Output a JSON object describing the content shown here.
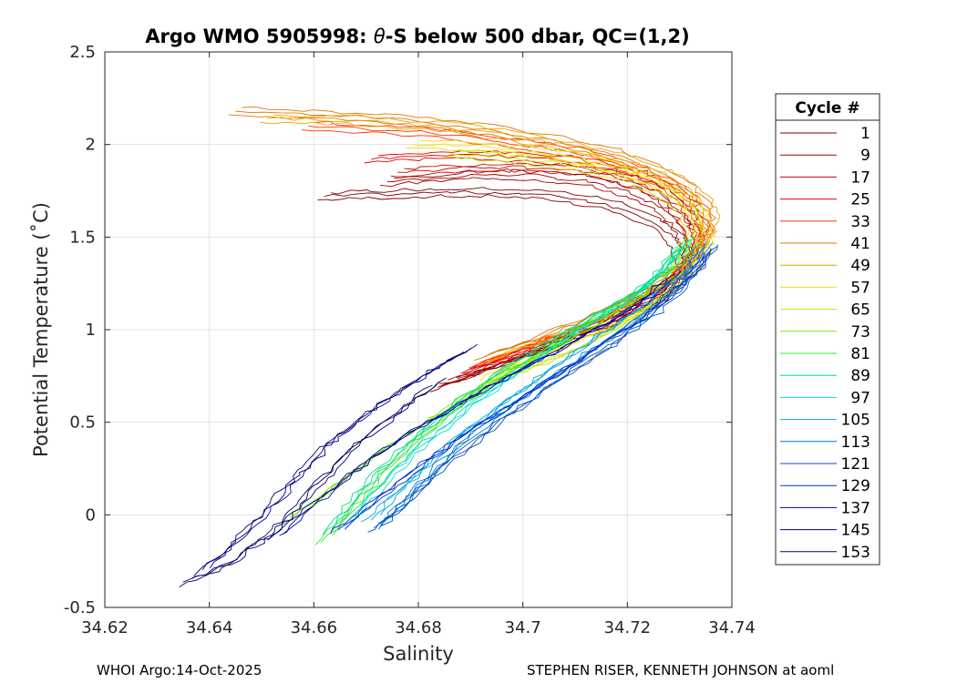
{
  "chart_data": {
    "type": "line",
    "title": "Argo WMO 5905998: θ-S below 500 dbar,  QC=(1,2)",
    "title_prefix": "Argo WMO 5905998: ",
    "title_theta": "θ",
    "title_suffix": "-S below 500 dbar,  QC=(1,2)",
    "xlabel": "Salinity",
    "ylabel": "Potential Temperature (˚C)",
    "xlim": [
      34.62,
      34.74
    ],
    "ylim": [
      -0.5,
      2.5
    ],
    "xticks": [
      34.62,
      34.64,
      34.66,
      34.68,
      34.7,
      34.72,
      34.74
    ],
    "yticks": [
      -0.5,
      0,
      0.5,
      1,
      1.5,
      2,
      2.5
    ],
    "xtick_labels": [
      "34.62",
      "34.64",
      "34.66",
      "34.68",
      "34.7",
      "34.72",
      "34.74"
    ],
    "ytick_labels": [
      "-0.5",
      "0",
      "0.5",
      "1",
      "1.5",
      "2",
      "2.5"
    ],
    "grid": true,
    "legend_title": "Cycle #",
    "legend_position": "right-outside",
    "series": [
      {
        "name": "1",
        "color": "#7f0000",
        "s": [
          34.662,
          34.672,
          34.685,
          34.697,
          34.707,
          34.716,
          34.724,
          34.729,
          34.731,
          34.73,
          34.726,
          34.718,
          34.707,
          34.695,
          34.683
        ],
        "t": [
          1.72,
          1.73,
          1.74,
          1.74,
          1.72,
          1.68,
          1.6,
          1.5,
          1.38,
          1.26,
          1.15,
          1.04,
          0.92,
          0.8,
          0.68
        ]
      },
      {
        "name": "9",
        "color": "#a00000",
        "s": [
          34.674,
          34.684,
          34.694,
          34.704,
          34.713,
          34.72,
          34.726,
          34.73,
          34.732,
          34.731,
          34.727,
          34.72,
          34.71,
          34.698,
          34.686
        ],
        "t": [
          1.8,
          1.82,
          1.84,
          1.83,
          1.8,
          1.75,
          1.67,
          1.57,
          1.45,
          1.32,
          1.2,
          1.08,
          0.96,
          0.84,
          0.72
        ]
      },
      {
        "name": "17",
        "color": "#cc0000",
        "s": [
          34.676,
          34.687,
          34.698,
          34.708,
          34.716,
          34.722,
          34.727,
          34.731,
          34.733,
          34.732,
          34.728,
          34.721,
          34.712,
          34.701,
          34.689
        ],
        "t": [
          1.85,
          1.87,
          1.88,
          1.87,
          1.84,
          1.79,
          1.72,
          1.62,
          1.5,
          1.37,
          1.24,
          1.12,
          1.0,
          0.88,
          0.76
        ]
      },
      {
        "name": "25",
        "color": "#e60000",
        "s": [
          34.671,
          34.683,
          34.695,
          34.706,
          34.715,
          34.722,
          34.728,
          34.732,
          34.734,
          34.733,
          34.729,
          34.722,
          34.713,
          34.702,
          34.69
        ],
        "t": [
          1.92,
          1.94,
          1.94,
          1.92,
          1.88,
          1.83,
          1.76,
          1.66,
          1.54,
          1.41,
          1.28,
          1.15,
          1.03,
          0.91,
          0.79
        ]
      },
      {
        "name": "33",
        "color": "#ff3300",
        "s": [
          34.659,
          34.673,
          34.687,
          34.7,
          34.711,
          34.72,
          34.727,
          34.732,
          34.735,
          34.734,
          34.73,
          34.723,
          34.714,
          34.703,
          34.691
        ],
        "t": [
          2.1,
          2.08,
          2.05,
          2.0,
          1.95,
          1.88,
          1.8,
          1.7,
          1.58,
          1.45,
          1.31,
          1.18,
          1.05,
          0.93,
          0.81
        ]
      },
      {
        "name": "41",
        "color": "#e07800",
        "s": [
          34.645,
          34.662,
          34.678,
          34.693,
          34.706,
          34.717,
          34.725,
          34.731,
          34.735,
          34.735,
          34.731,
          34.724,
          34.715,
          34.704,
          34.692
        ],
        "t": [
          2.18,
          2.16,
          2.13,
          2.08,
          2.02,
          1.95,
          1.87,
          1.77,
          1.65,
          1.51,
          1.37,
          1.23,
          1.1,
          0.97,
          0.85
        ]
      },
      {
        "name": "49",
        "color": "#f0a000",
        "s": [
          34.651,
          34.667,
          34.683,
          34.697,
          34.709,
          34.719,
          34.727,
          34.733,
          34.736,
          34.735,
          34.732,
          34.725,
          34.716,
          34.705,
          34.693
        ],
        "t": [
          2.14,
          2.13,
          2.1,
          2.05,
          1.99,
          1.92,
          1.84,
          1.74,
          1.62,
          1.48,
          1.34,
          1.2,
          1.07,
          0.95,
          0.83
        ]
      },
      {
        "name": "57",
        "color": "#f0e000",
        "s": [
          34.679,
          34.691,
          34.702,
          34.712,
          34.72,
          34.726,
          34.731,
          34.734,
          34.735,
          34.734,
          34.73,
          34.723,
          34.714,
          34.704,
          34.693
        ],
        "t": [
          2.0,
          1.99,
          1.96,
          1.92,
          1.86,
          1.79,
          1.71,
          1.61,
          1.49,
          1.36,
          1.23,
          1.1,
          0.98,
          0.86,
          0.75
        ]
      },
      {
        "name": "65",
        "color": "#c8e600",
        "s": [
          34.686,
          34.697,
          34.707,
          34.715,
          34.722,
          34.727,
          34.731,
          34.733,
          34.733,
          34.731,
          34.727,
          34.72,
          34.712,
          34.702,
          34.691
        ],
        "t": [
          1.95,
          1.93,
          1.9,
          1.86,
          1.81,
          1.74,
          1.66,
          1.56,
          1.44,
          1.3,
          1.17,
          1.04,
          0.92,
          0.8,
          0.69
        ]
      },
      {
        "name": "73",
        "color": "#7de600",
        "s": [
          34.731,
          34.73,
          34.727,
          34.72,
          34.71,
          34.699,
          34.688,
          34.677,
          34.666,
          34.656
        ],
        "t": [
          1.5,
          1.38,
          1.26,
          1.12,
          0.96,
          0.8,
          0.62,
          0.42,
          0.2,
          -0.02
        ]
      },
      {
        "name": "81",
        "color": "#33e633",
        "s": [
          34.731,
          34.727,
          34.719,
          34.708,
          34.697,
          34.686,
          34.677,
          34.669,
          34.662
        ],
        "t": [
          1.45,
          1.3,
          1.14,
          0.96,
          0.76,
          0.55,
          0.32,
          0.08,
          -0.14
        ]
      },
      {
        "name": "89",
        "color": "#00e07a",
        "s": [
          34.731,
          34.726,
          34.718,
          34.707,
          34.696,
          34.686,
          34.677,
          34.669,
          34.663
        ],
        "t": [
          1.46,
          1.3,
          1.14,
          0.97,
          0.78,
          0.58,
          0.36,
          0.13,
          -0.08
        ]
      },
      {
        "name": "97",
        "color": "#00e0c8",
        "s": [
          34.731,
          34.727,
          34.72,
          34.71,
          34.7,
          34.69,
          34.681,
          34.673,
          34.667
        ],
        "t": [
          1.47,
          1.32,
          1.15,
          0.98,
          0.79,
          0.59,
          0.38,
          0.16,
          -0.04
        ]
      },
      {
        "name": "105",
        "color": "#00a8e6",
        "s": [
          34.734,
          34.73,
          34.723,
          34.714,
          34.704,
          34.694,
          34.685,
          34.677,
          34.671
        ],
        "t": [
          1.46,
          1.3,
          1.13,
          0.95,
          0.76,
          0.56,
          0.36,
          0.15,
          -0.02
        ]
      },
      {
        "name": "113",
        "color": "#0078d0",
        "s": [
          34.735,
          34.731,
          34.724,
          34.715,
          34.705,
          34.695,
          34.686,
          34.679,
          34.673
        ],
        "t": [
          1.45,
          1.28,
          1.1,
          0.92,
          0.73,
          0.53,
          0.33,
          0.12,
          -0.05
        ]
      },
      {
        "name": "121",
        "color": "#0050c0",
        "s": [
          34.736,
          34.732,
          34.725,
          34.716,
          34.706,
          34.696,
          34.687,
          34.679,
          34.672
        ],
        "t": [
          1.44,
          1.27,
          1.08,
          0.9,
          0.71,
          0.51,
          0.31,
          0.1,
          -0.08
        ]
      },
      {
        "name": "129",
        "color": "#0030d0",
        "s": [
          34.736,
          34.731,
          34.723,
          34.713,
          34.703,
          34.692,
          34.682,
          34.673,
          34.664
        ],
        "t": [
          1.43,
          1.25,
          1.06,
          0.88,
          0.69,
          0.49,
          0.3,
          0.1,
          -0.09
        ]
      },
      {
        "name": "137",
        "color": "#0000a8",
        "s": [
          34.729,
          34.722,
          34.713,
          34.702,
          34.691,
          34.68,
          34.67,
          34.661,
          34.653
        ],
        "t": [
          1.3,
          1.14,
          0.98,
          0.82,
          0.65,
          0.47,
          0.28,
          0.08,
          -0.12
        ]
      },
      {
        "name": "145",
        "color": "#000080",
        "s": [
          34.69,
          34.682,
          34.675,
          34.668,
          34.662,
          34.657,
          34.652,
          34.646,
          34.639
        ],
        "t": [
          0.9,
          0.77,
          0.64,
          0.5,
          0.36,
          0.21,
          0.05,
          -0.12,
          -0.3
        ]
      },
      {
        "name": "153",
        "color": "#000060",
        "s": [
          34.684,
          34.676,
          34.668,
          34.662,
          34.657,
          34.651,
          34.644,
          34.635
        ],
        "t": [
          0.72,
          0.55,
          0.38,
          0.2,
          0.04,
          -0.12,
          -0.26,
          -0.37
        ]
      }
    ]
  },
  "footer": {
    "left": "WHOI Argo:14-Oct-2025",
    "right": "STEPHEN RISER, KENNETH JOHNSON at aoml"
  }
}
